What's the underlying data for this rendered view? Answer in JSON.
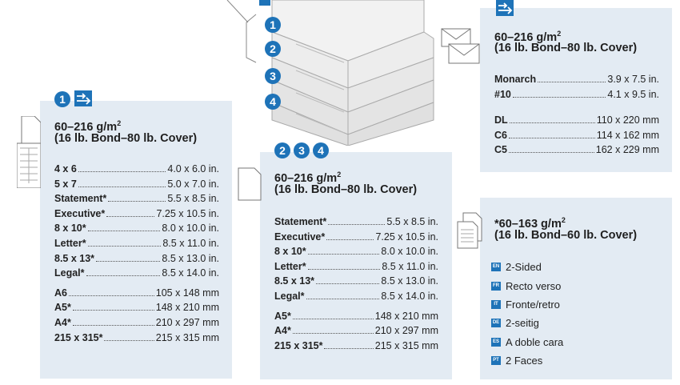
{
  "tray1": {
    "badges": [
      "1"
    ],
    "icon": "tray-feed-icon",
    "weight": "60–216 g/m",
    "weight_sup": "2",
    "weight_note": "(16 lb. Bond–80 lb. Cover)",
    "imperial": [
      {
        "name": "4 x 6",
        "value": "4.0 x 6.0 in."
      },
      {
        "name": "5 x 7",
        "value": "5.0 x 7.0 in."
      },
      {
        "name": "Statement*",
        "value": "5.5 x 8.5 in."
      },
      {
        "name": "Executive*",
        "value": "7.25 x 10.5 in."
      },
      {
        "name": "8 x 10*",
        "value": "8.0 x 10.0 in."
      },
      {
        "name": "Letter*",
        "value": "8.5 x 11.0 in."
      },
      {
        "name": "8.5 x 13*",
        "value": "8.5 x 13.0 in."
      },
      {
        "name": "Legal*",
        "value": "8.5 x 14.0 in."
      }
    ],
    "metric": [
      {
        "name": "A6",
        "value": "105 x 148 mm"
      },
      {
        "name": "A5*",
        "value": "148 x 210 mm"
      },
      {
        "name": "A4*",
        "value": "210 x 297 mm"
      },
      {
        "name": "215 x 315*",
        "value": "215 x 315 mm"
      }
    ]
  },
  "trays234": {
    "badges": [
      "2",
      "3",
      "4"
    ],
    "weight": "60–216 g/m",
    "weight_sup": "2",
    "weight_note": "(16 lb. Bond–80 lb. Cover)",
    "imperial": [
      {
        "name": "Statement*",
        "value": "5.5 x 8.5 in."
      },
      {
        "name": "Executive*",
        "value": "7.25 x 10.5 in."
      },
      {
        "name": "8 x 10*",
        "value": "8.0 x 10.0 in."
      },
      {
        "name": "Letter*",
        "value": "8.5 x 11.0 in."
      },
      {
        "name": "8.5 x 13*",
        "value": "8.5 x 13.0 in."
      },
      {
        "name": "Legal*",
        "value": "8.5 x 14.0 in."
      }
    ],
    "metric": [
      {
        "name": "A5*",
        "value": "148 x 210 mm"
      },
      {
        "name": "A4*",
        "value": "210 x 297 mm"
      },
      {
        "name": "215 x 315*",
        "value": "215 x 315 mm"
      }
    ]
  },
  "envelope": {
    "icon": "tray-feed-icon",
    "weight": "60–216 g/m",
    "weight_sup": "2",
    "weight_note": "(16 lb. Bond–80 lb. Cover)",
    "imperial": [
      {
        "name": "Monarch",
        "value": "3.9 x 7.5 in."
      },
      {
        "name": "#10",
        "value": "4.1 x 9.5 in."
      }
    ],
    "metric": [
      {
        "name": "DL",
        "value": "110 x 220 mm"
      },
      {
        "name": "C6",
        "value": "114 x 162 mm"
      },
      {
        "name": "C5",
        "value": "162 x 229 mm"
      }
    ]
  },
  "duplex": {
    "weight": "*60–163 g/m",
    "weight_sup": "2",
    "weight_note": "(16 lb. Bond–60 lb. Cover)",
    "languages": [
      {
        "code": "EN",
        "label": "2-Sided"
      },
      {
        "code": "FR",
        "label": "Recto verso"
      },
      {
        "code": "IT",
        "label": "Fronte/retro"
      },
      {
        "code": "DE",
        "label": "2-seitig"
      },
      {
        "code": "ES",
        "label": "A doble cara"
      },
      {
        "code": "PT",
        "label": "2 Faces"
      }
    ]
  },
  "printer": {
    "tray_badges": [
      "1",
      "2",
      "3",
      "4"
    ]
  },
  "colors": {
    "accent": "#1e73b8",
    "panel": "#e3ebf3"
  }
}
